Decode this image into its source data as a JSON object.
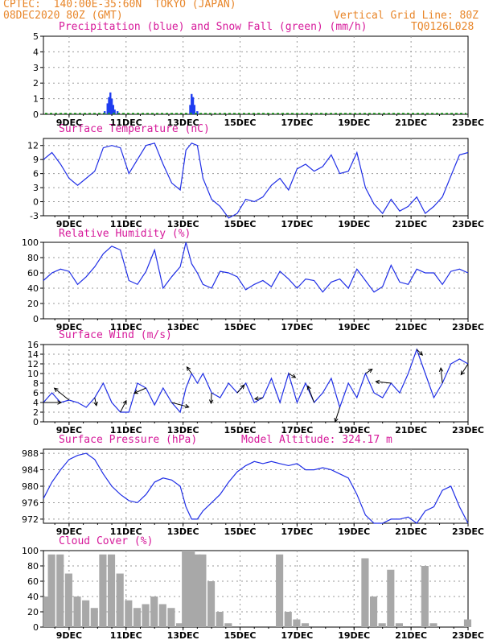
{
  "header": {
    "line1": "CPTEC:  140:00E-35:60N  TOKYO (JAPAN)",
    "line2": "08DEC2020 80Z (GMT)",
    "grid_note": "Vertical Grid Line: 80Z",
    "code": "TQ0126L028"
  },
  "colors": {
    "header": "#e8862a",
    "title": "#d6199a",
    "line": "#1f2ee6",
    "precip": "#1e3cf0",
    "snow": "#19a019",
    "cloud": "#a8a8a8",
    "grid": "#9a9a9a"
  },
  "chart_data": [
    {
      "type": "bar",
      "title": "Precipitation (blue) and Snow Fall (green) (mm/h)",
      "x_tick_labels": [
        "9DEC",
        "11DEC",
        "13DEC",
        "15DEC",
        "17DEC",
        "19DEC",
        "21DEC",
        "23DEC"
      ],
      "xlim_days": [
        8.1,
        23.0
      ],
      "ylim": [
        0,
        5
      ],
      "y_ticks": [
        0,
        1,
        2,
        3,
        4,
        5
      ],
      "grid": true,
      "series": [
        {
          "name": "Precipitation",
          "x": [
            10.25,
            10.35,
            10.4,
            10.45,
            10.5,
            10.55,
            10.6,
            10.7,
            13.25,
            13.3,
            13.35,
            13.4,
            13.5
          ],
          "values": [
            0.2,
            0.7,
            1.1,
            1.4,
            1.0,
            0.6,
            0.3,
            0.2,
            0.6,
            1.3,
            1.1,
            0.6,
            0.2
          ]
        },
        {
          "name": "Snow Fall",
          "x": [],
          "values": []
        }
      ]
    },
    {
      "type": "line",
      "title": "Surface Temperature (nC)",
      "x_tick_labels": [
        "9DEC",
        "11DEC",
        "13DEC",
        "15DEC",
        "17DEC",
        "19DEC",
        "21DEC",
        "23DEC"
      ],
      "xlim_days": [
        8.1,
        23.0
      ],
      "ylim": [
        -3,
        13.5
      ],
      "y_ticks": [
        -3,
        0,
        3,
        6,
        9,
        12
      ],
      "grid": true,
      "x": [
        8.1,
        8.4,
        8.7,
        9.0,
        9.3,
        9.6,
        9.9,
        10.2,
        10.5,
        10.8,
        11.1,
        11.4,
        11.7,
        12.0,
        12.3,
        12.6,
        12.9,
        13.1,
        13.3,
        13.5,
        13.7,
        14.0,
        14.3,
        14.6,
        14.9,
        15.2,
        15.5,
        15.8,
        16.1,
        16.4,
        16.7,
        17.0,
        17.3,
        17.6,
        17.9,
        18.2,
        18.5,
        18.8,
        19.1,
        19.4,
        19.7,
        20.0,
        20.3,
        20.6,
        20.9,
        21.2,
        21.5,
        21.8,
        22.1,
        22.4,
        22.7,
        23.0
      ],
      "values": [
        9,
        10.5,
        8,
        5,
        3.5,
        5,
        6.5,
        11.5,
        12,
        11.5,
        6,
        9,
        12,
        12.5,
        8,
        4,
        2.5,
        11,
        12.5,
        12,
        5,
        0.5,
        -1,
        -3.5,
        -2.5,
        0.5,
        0,
        1,
        3.5,
        5,
        2.5,
        7,
        8,
        6.5,
        7.5,
        10,
        6,
        6.5,
        10.5,
        3,
        -0.5,
        -2.5,
        0.5,
        -2,
        -1,
        1,
        -2.5,
        -1,
        1,
        5.5,
        10,
        10.5
      ]
    },
    {
      "type": "line",
      "title": "Relative Humidity (%)",
      "x_tick_labels": [
        "9DEC",
        "11DEC",
        "13DEC",
        "15DEC",
        "17DEC",
        "19DEC",
        "21DEC",
        "23DEC"
      ],
      "xlim_days": [
        8.1,
        23.0
      ],
      "ylim": [
        0,
        100
      ],
      "y_ticks": [
        0,
        20,
        40,
        60,
        80,
        100
      ],
      "grid": true,
      "x": [
        8.1,
        8.4,
        8.7,
        9.0,
        9.3,
        9.6,
        9.9,
        10.2,
        10.5,
        10.8,
        11.1,
        11.4,
        11.7,
        12.0,
        12.3,
        12.6,
        12.9,
        13.1,
        13.3,
        13.5,
        13.7,
        14.0,
        14.3,
        14.6,
        14.9,
        15.2,
        15.5,
        15.8,
        16.1,
        16.4,
        16.7,
        17.0,
        17.3,
        17.6,
        17.9,
        18.2,
        18.5,
        18.8,
        19.1,
        19.4,
        19.7,
        20.0,
        20.3,
        20.6,
        20.9,
        21.2,
        21.5,
        21.8,
        22.1,
        22.4,
        22.7,
        23.0
      ],
      "values": [
        50,
        60,
        65,
        62,
        45,
        55,
        68,
        85,
        95,
        90,
        50,
        45,
        62,
        90,
        40,
        55,
        68,
        100,
        72,
        60,
        45,
        40,
        62,
        60,
        55,
        38,
        45,
        50,
        42,
        62,
        52,
        40,
        52,
        50,
        35,
        48,
        52,
        40,
        65,
        50,
        35,
        42,
        70,
        48,
        45,
        65,
        60,
        60,
        45,
        62,
        65,
        60
      ]
    },
    {
      "type": "line",
      "title": "Surface Wind (m/s)",
      "x_tick_labels": [
        "9DEC",
        "11DEC",
        "13DEC",
        "15DEC",
        "17DEC",
        "19DEC",
        "21DEC",
        "23DEC"
      ],
      "xlim_days": [
        8.1,
        23.0
      ],
      "ylim": [
        0,
        16
      ],
      "y_ticks": [
        0,
        2,
        4,
        6,
        8,
        10,
        12,
        14,
        16
      ],
      "grid": true,
      "x": [
        8.1,
        8.4,
        8.7,
        9.0,
        9.3,
        9.6,
        9.9,
        10.2,
        10.5,
        10.8,
        11.1,
        11.4,
        11.7,
        12.0,
        12.3,
        12.6,
        12.9,
        13.1,
        13.3,
        13.5,
        13.7,
        14.0,
        14.3,
        14.6,
        14.9,
        15.2,
        15.5,
        15.8,
        16.1,
        16.4,
        16.7,
        17.0,
        17.3,
        17.6,
        17.9,
        18.2,
        18.5,
        18.8,
        19.1,
        19.4,
        19.7,
        20.0,
        20.3,
        20.6,
        20.9,
        21.2,
        21.5,
        21.8,
        22.1,
        22.4,
        22.7,
        23.0
      ],
      "values": [
        4,
        6,
        4,
        4.5,
        4,
        3,
        5,
        8,
        4,
        2,
        2,
        8,
        7,
        3.5,
        7,
        4,
        2,
        7,
        10,
        8,
        10,
        6,
        5,
        8,
        6,
        8,
        4,
        5,
        9,
        4,
        10,
        4,
        8,
        4,
        6,
        9,
        3,
        8,
        5,
        10,
        6,
        5,
        8,
        6,
        10,
        15,
        10,
        5,
        8,
        12,
        13,
        12
      ]
    },
    {
      "type": "line",
      "title": "Surface Pressure (hPa)",
      "annotation": "Model Altitude: 324.17 m",
      "x_tick_labels": [
        "9DEC",
        "11DEC",
        "13DEC",
        "15DEC",
        "17DEC",
        "19DEC",
        "21DEC",
        "23DEC"
      ],
      "xlim_days": [
        8.1,
        23.0
      ],
      "ylim": [
        971,
        989
      ],
      "y_ticks": [
        972,
        976,
        980,
        984,
        988
      ],
      "grid": true,
      "x": [
        8.1,
        8.4,
        8.7,
        9.0,
        9.3,
        9.6,
        9.9,
        10.2,
        10.5,
        10.8,
        11.1,
        11.4,
        11.7,
        12.0,
        12.3,
        12.6,
        12.9,
        13.1,
        13.3,
        13.5,
        13.7,
        14.0,
        14.3,
        14.6,
        14.9,
        15.2,
        15.5,
        15.8,
        16.1,
        16.4,
        16.7,
        17.0,
        17.3,
        17.6,
        17.9,
        18.2,
        18.5,
        18.8,
        19.1,
        19.4,
        19.7,
        20.0,
        20.3,
        20.6,
        20.9,
        21.2,
        21.5,
        21.8,
        22.1,
        22.4,
        22.7,
        23.0
      ],
      "values": [
        977,
        981,
        984,
        986.5,
        987.5,
        988,
        986.5,
        983,
        980,
        978,
        976.5,
        976,
        978,
        981,
        982,
        981.5,
        980,
        975,
        972,
        972,
        974,
        976,
        978,
        981,
        983.5,
        985,
        986,
        985.5,
        986,
        985.5,
        985,
        985.5,
        984,
        984,
        984.5,
        984,
        983,
        982,
        978,
        973,
        971,
        971,
        972,
        972,
        972.5,
        971,
        974,
        975,
        979,
        980,
        975,
        971
      ]
    },
    {
      "type": "bar",
      "title": "Cloud Cover (%)",
      "x_tick_labels": [
        "9DEC",
        "11DEC",
        "13DEC",
        "15DEC",
        "17DEC",
        "19DEC",
        "21DEC",
        "23DEC"
      ],
      "xlim_days": [
        8.1,
        23.0
      ],
      "ylim": [
        0,
        100
      ],
      "y_ticks": [
        0,
        20,
        40,
        60,
        80,
        100
      ],
      "grid": true,
      "x": [
        8.1,
        8.4,
        8.7,
        9.0,
        9.3,
        9.6,
        9.9,
        10.2,
        10.5,
        10.8,
        11.1,
        11.4,
        11.7,
        12.0,
        12.3,
        12.6,
        12.9,
        13.1,
        13.3,
        13.5,
        13.7,
        14.0,
        14.3,
        14.6,
        14.9,
        15.2,
        15.5,
        15.8,
        16.1,
        16.4,
        16.7,
        17.0,
        17.3,
        17.6,
        17.9,
        18.2,
        18.5,
        18.8,
        19.1,
        19.4,
        19.7,
        20.0,
        20.3,
        20.6,
        20.9,
        21.2,
        21.5,
        21.8,
        22.1,
        22.4,
        22.7,
        23.0
      ],
      "values": [
        40,
        95,
        95,
        70,
        40,
        35,
        25,
        95,
        95,
        70,
        35,
        25,
        30,
        40,
        30,
        25,
        5,
        100,
        100,
        95,
        95,
        60,
        20,
        5,
        0,
        0,
        0,
        0,
        0,
        95,
        20,
        10,
        5,
        0,
        0,
        0,
        0,
        0,
        0,
        90,
        40,
        5,
        75,
        5,
        0,
        0,
        80,
        5,
        0,
        0,
        0,
        10
      ]
    }
  ]
}
